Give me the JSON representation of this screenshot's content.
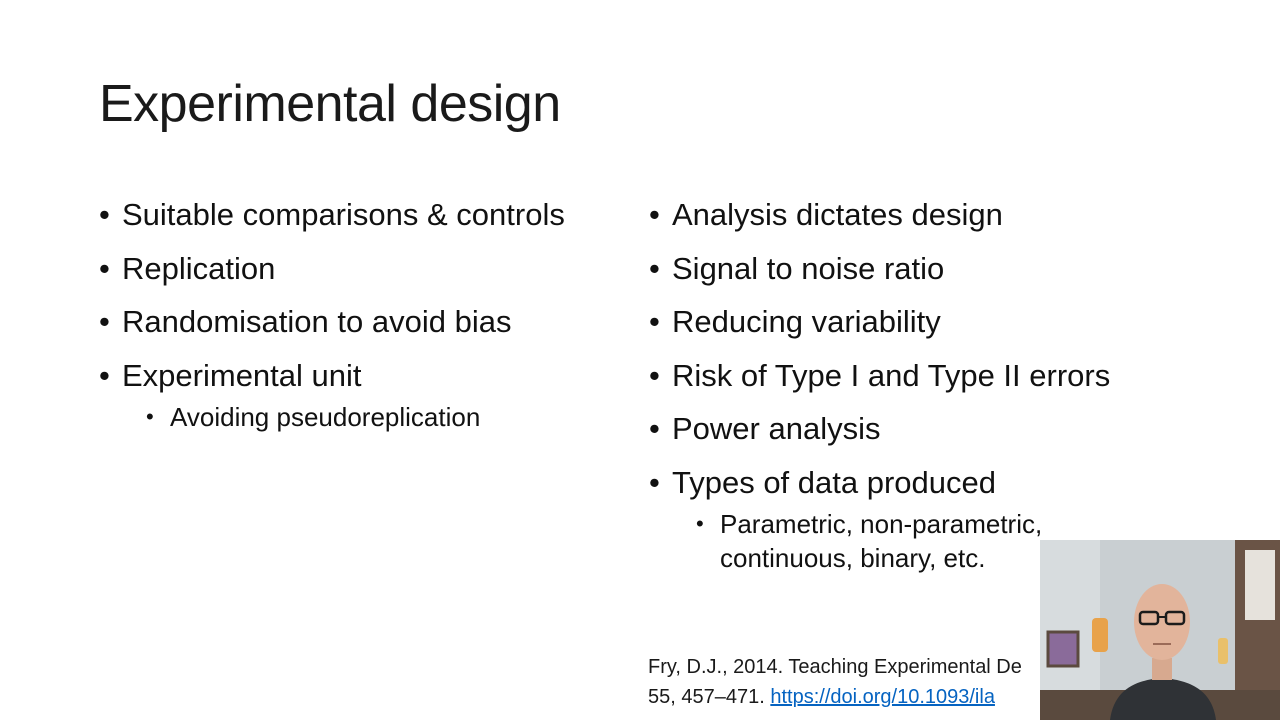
{
  "slide": {
    "title": "Experimental design",
    "left_column": {
      "bullets": [
        "Suitable comparisons & controls",
        "Replication",
        "Randomisation to avoid bias",
        "Experimental unit"
      ],
      "sub_bullets": [
        "Avoiding pseudoreplication"
      ]
    },
    "right_column": {
      "bullets": [
        "Analysis dictates design",
        "Signal to noise ratio",
        "Reducing variability",
        "Risk of Type I and Type II errors",
        "Power analysis",
        "Types of data produced"
      ],
      "sub_bullets": [
        "Parametric, non-parametric, continuous, binary, etc."
      ]
    },
    "reference": {
      "line1": "Fry, D.J., 2014. Teaching Experimental De",
      "line2_prefix": "55, 457–471. ",
      "link_text": "https://doi.org/10.1093/ila"
    }
  },
  "webcam": {
    "icon": "webcam-presenter-video"
  }
}
